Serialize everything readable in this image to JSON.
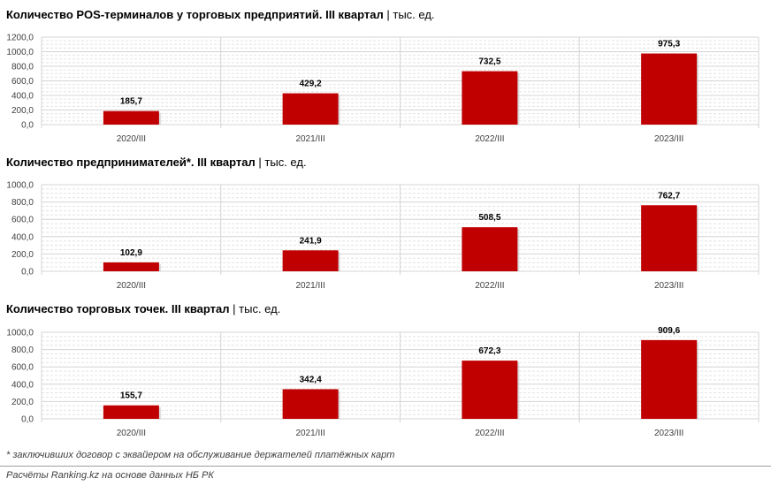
{
  "chart_data": [
    {
      "type": "bar",
      "title": "Количество POS-терминалов у торговых предприятий. III квартал",
      "unit_label": "тыс. ед.",
      "categories": [
        "2020/III",
        "2021/III",
        "2022/III",
        "2023/III"
      ],
      "values": [
        185.7,
        429.2,
        732.5,
        975.3
      ],
      "data_labels": [
        "185,7",
        "429,2",
        "732,5",
        "975,3"
      ],
      "y_ticks": [
        "0,0",
        "200,0",
        "400,0",
        "600,0",
        "800,0",
        "1000,0",
        "1200,0"
      ],
      "ylim": [
        0,
        1200
      ],
      "bar_color": "#c00000",
      "grid": true
    },
    {
      "type": "bar",
      "title": "Количество предпринимателей*. III квартал",
      "unit_label": "тыс. ед.",
      "categories": [
        "2020/III",
        "2021/III",
        "2022/III",
        "2023/III"
      ],
      "values": [
        102.9,
        241.9,
        508.5,
        762.7
      ],
      "data_labels": [
        "102,9",
        "241,9",
        "508,5",
        "762,7"
      ],
      "y_ticks": [
        "0,0",
        "200,0",
        "400,0",
        "600,0",
        "800,0",
        "1000,0"
      ],
      "ylim": [
        0,
        1000
      ],
      "bar_color": "#c00000",
      "grid": true
    },
    {
      "type": "bar",
      "title": "Количество торговых точек. III квартал",
      "unit_label": "тыс. ед.",
      "categories": [
        "2020/III",
        "2021/III",
        "2022/III",
        "2023/III"
      ],
      "values": [
        155.7,
        342.4,
        672.3,
        909.6
      ],
      "data_labels": [
        "155,7",
        "342,4",
        "672,3",
        "909,6"
      ],
      "y_ticks": [
        "0,0",
        "200,0",
        "400,0",
        "600,0",
        "800,0",
        "1000,0"
      ],
      "ylim": [
        0,
        1000
      ],
      "bar_color": "#c00000",
      "grid": true
    }
  ],
  "footnotes": {
    "asterisk_note": "* заключивших договор с эквайером на обслуживание держателей платёжных карт",
    "source": "Расчёты Ranking.kz на основе данных НБ РК"
  }
}
